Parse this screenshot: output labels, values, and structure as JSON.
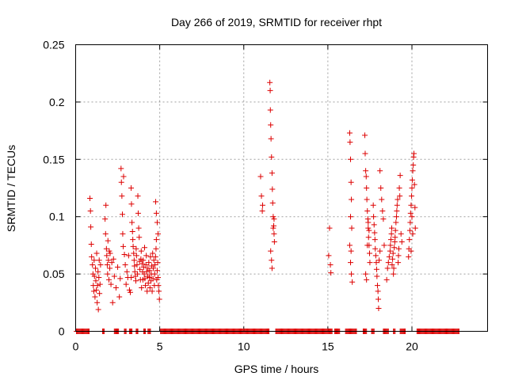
{
  "chart_data": {
    "type": "scatter",
    "title": "Day 266 of 2019, SRMTID for receiver rhpt",
    "xlabel": "GPS time / hours",
    "ylabel": "SRMTID / TECUs",
    "xlim": [
      0,
      24.5
    ],
    "ylim": [
      0,
      0.25
    ],
    "x_ticks": [
      0,
      5,
      10,
      15,
      20
    ],
    "y_ticks": [
      0,
      0.05,
      0.1,
      0.15,
      0.2,
      0.25
    ],
    "y_tick_labels": [
      "0",
      "0.05",
      "0.1",
      "0.15",
      "0.2",
      "0.25"
    ],
    "grid": true,
    "legend": "none",
    "marker": "+",
    "series": [
      {
        "color": "#dd0000",
        "points": [
          [
            0.85,
            0.116
          ],
          [
            0.88,
            0.105
          ],
          [
            0.9,
            0.091
          ],
          [
            0.93,
            0.076
          ],
          [
            0.95,
            0.065
          ],
          [
            1.0,
            0.058
          ],
          [
            1.03,
            0.05
          ],
          [
            1.05,
            0.04
          ],
          [
            1.08,
            0.035
          ],
          [
            1.1,
            0.062
          ],
          [
            1.12,
            0.048
          ],
          [
            1.15,
            0.03
          ],
          [
            1.18,
            0.055
          ],
          [
            1.2,
            0.044
          ],
          [
            1.23,
            0.036
          ],
          [
            1.25,
            0.068
          ],
          [
            1.28,
            0.025
          ],
          [
            1.3,
            0.04
          ],
          [
            1.33,
            0.052
          ],
          [
            1.35,
            0.019
          ],
          [
            1.38,
            0.047
          ],
          [
            1.4,
            0.062
          ],
          [
            1.42,
            0.033
          ],
          [
            1.45,
            0.041
          ],
          [
            1.48,
            0.058
          ],
          [
            1.75,
            0.098
          ],
          [
            1.78,
            0.085
          ],
          [
            1.8,
            0.11
          ],
          [
            1.83,
            0.072
          ],
          [
            1.85,
            0.066
          ],
          [
            1.88,
            0.058
          ],
          [
            1.9,
            0.05
          ],
          [
            1.92,
            0.079
          ],
          [
            1.95,
            0.062
          ],
          [
            1.98,
            0.045
          ],
          [
            2.0,
            0.07
          ],
          [
            2.03,
            0.055
          ],
          [
            2.05,
            0.068
          ],
          [
            2.1,
            0.041
          ],
          [
            2.15,
            0.06
          ],
          [
            2.2,
            0.025
          ],
          [
            2.25,
            0.063
          ],
          [
            2.3,
            0.048
          ],
          [
            2.4,
            0.038
          ],
          [
            2.5,
            0.056
          ],
          [
            2.6,
            0.03
          ],
          [
            2.65,
            0.046
          ],
          [
            2.7,
            0.142
          ],
          [
            2.72,
            0.13
          ],
          [
            2.75,
            0.118
          ],
          [
            2.78,
            0.102
          ],
          [
            2.8,
            0.085
          ],
          [
            2.83,
            0.074
          ],
          [
            2.85,
            0.135
          ],
          [
            2.9,
            0.067
          ],
          [
            2.95,
            0.058
          ],
          [
            3.0,
            0.041
          ],
          [
            3.05,
            0.052
          ],
          [
            3.1,
            0.047
          ],
          [
            3.15,
            0.066
          ],
          [
            3.2,
            0.036
          ],
          [
            3.25,
            0.034
          ],
          [
            3.3,
            0.047
          ],
          [
            3.3,
            0.125
          ],
          [
            3.32,
            0.111
          ],
          [
            3.35,
            0.095
          ],
          [
            3.38,
            0.087
          ],
          [
            3.4,
            0.08
          ],
          [
            3.42,
            0.074
          ],
          [
            3.45,
            0.068
          ],
          [
            3.48,
            0.062
          ],
          [
            3.5,
            0.057
          ],
          [
            3.52,
            0.052
          ],
          [
            3.55,
            0.048
          ],
          [
            3.58,
            0.044
          ],
          [
            3.6,
            0.072
          ],
          [
            3.62,
            0.066
          ],
          [
            3.65,
            0.058
          ],
          [
            3.68,
            0.05
          ],
          [
            3.7,
            0.118
          ],
          [
            3.72,
            0.103
          ],
          [
            3.75,
            0.09
          ],
          [
            3.78,
            0.082
          ],
          [
            3.8,
            0.061
          ],
          [
            3.82,
            0.054
          ],
          [
            3.85,
            0.045
          ],
          [
            3.88,
            0.063
          ],
          [
            3.9,
            0.07
          ],
          [
            3.92,
            0.038
          ],
          [
            3.95,
            0.059
          ],
          [
            3.98,
            0.052
          ],
          [
            4.0,
            0.045
          ],
          [
            4.02,
            0.062
          ],
          [
            4.05,
            0.056
          ],
          [
            4.08,
            0.05
          ],
          [
            4.1,
            0.073
          ],
          [
            4.12,
            0.046
          ],
          [
            4.15,
            0.04
          ],
          [
            4.18,
            0.058
          ],
          [
            4.2,
            0.066
          ],
          [
            4.22,
            0.052
          ],
          [
            4.25,
            0.035
          ],
          [
            4.28,
            0.048
          ],
          [
            4.3,
            0.055
          ],
          [
            4.32,
            0.042
          ],
          [
            4.35,
            0.06
          ],
          [
            4.38,
            0.047
          ],
          [
            4.4,
            0.053
          ],
          [
            4.42,
            0.038
          ],
          [
            4.45,
            0.065
          ],
          [
            4.48,
            0.044
          ],
          [
            4.5,
            0.05
          ],
          [
            4.52,
            0.057
          ],
          [
            4.55,
            0.035
          ],
          [
            4.58,
            0.068
          ],
          [
            4.6,
            0.046
          ],
          [
            4.62,
            0.055
          ],
          [
            4.65,
            0.062
          ],
          [
            4.68,
            0.04
          ],
          [
            4.7,
            0.05
          ],
          [
            4.72,
            0.058
          ],
          [
            4.75,
            0.065
          ],
          [
            4.78,
            0.072
          ],
          [
            4.8,
            0.08
          ],
          [
            4.82,
            0.045
          ],
          [
            4.85,
            0.053
          ],
          [
            4.88,
            0.06
          ],
          [
            4.9,
            0.047
          ],
          [
            4.92,
            0.04
          ],
          [
            4.95,
            0.035
          ],
          [
            4.98,
            0.028
          ],
          [
            4.76,
            0.113
          ],
          [
            4.8,
            0.103
          ],
          [
            4.85,
            0.095
          ],
          [
            4.9,
            0.085
          ],
          [
            11.0,
            0.135
          ],
          [
            11.05,
            0.118
          ],
          [
            11.1,
            0.105
          ],
          [
            11.12,
            0.11
          ],
          [
            11.55,
            0.217
          ],
          [
            11.57,
            0.21
          ],
          [
            11.58,
            0.193
          ],
          [
            11.6,
            0.18
          ],
          [
            11.62,
            0.168
          ],
          [
            11.65,
            0.152
          ],
          [
            11.68,
            0.138
          ],
          [
            11.7,
            0.124
          ],
          [
            11.72,
            0.112
          ],
          [
            11.75,
            0.1
          ],
          [
            11.78,
            0.092
          ],
          [
            11.8,
            0.085
          ],
          [
            11.82,
            0.078
          ],
          [
            11.6,
            0.07
          ],
          [
            11.65,
            0.062
          ],
          [
            11.68,
            0.055
          ],
          [
            11.75,
            0.09
          ],
          [
            11.8,
            0.098
          ],
          [
            15.1,
            0.09
          ],
          [
            15.05,
            0.066
          ],
          [
            15.15,
            0.058
          ],
          [
            15.18,
            0.051
          ],
          [
            16.3,
            0.173
          ],
          [
            16.32,
            0.165
          ],
          [
            16.35,
            0.15
          ],
          [
            16.38,
            0.13
          ],
          [
            16.4,
            0.115
          ],
          [
            16.35,
            0.1
          ],
          [
            16.42,
            0.09
          ],
          [
            16.3,
            0.075
          ],
          [
            16.35,
            0.06
          ],
          [
            16.4,
            0.05
          ],
          [
            16.45,
            0.043
          ],
          [
            16.38,
            0.07
          ],
          [
            17.2,
            0.171
          ],
          [
            17.22,
            0.155
          ],
          [
            17.25,
            0.14
          ],
          [
            17.28,
            0.135
          ],
          [
            17.3,
            0.125
          ],
          [
            17.32,
            0.115
          ],
          [
            17.35,
            0.105
          ],
          [
            17.38,
            0.098
          ],
          [
            17.4,
            0.09
          ],
          [
            17.42,
            0.082
          ],
          [
            17.45,
            0.075
          ],
          [
            17.48,
            0.068
          ],
          [
            17.5,
            0.06
          ],
          [
            17.25,
            0.05
          ],
          [
            17.3,
            0.045
          ],
          [
            17.35,
            0.075
          ],
          [
            17.4,
            0.095
          ],
          [
            17.45,
            0.088
          ],
          [
            17.7,
            0.11
          ],
          [
            17.72,
            0.1
          ],
          [
            17.75,
            0.093
          ],
          [
            17.78,
            0.086
          ],
          [
            17.8,
            0.08
          ],
          [
            17.82,
            0.072
          ],
          [
            17.85,
            0.066
          ],
          [
            17.88,
            0.06
          ],
          [
            17.9,
            0.054
          ],
          [
            17.92,
            0.048
          ],
          [
            17.95,
            0.04
          ],
          [
            17.98,
            0.035
          ],
          [
            18.0,
            0.028
          ],
          [
            18.02,
            0.02
          ],
          [
            18.05,
            0.062
          ],
          [
            18.1,
            0.07
          ],
          [
            18.15,
            0.125
          ],
          [
            18.2,
            0.115
          ],
          [
            18.1,
            0.14
          ],
          [
            18.25,
            0.105
          ],
          [
            18.3,
            0.098
          ],
          [
            18.35,
            0.075
          ],
          [
            18.5,
            0.045
          ],
          [
            18.55,
            0.055
          ],
          [
            18.6,
            0.06
          ],
          [
            18.65,
            0.065
          ],
          [
            18.7,
            0.07
          ],
          [
            18.72,
            0.075
          ],
          [
            18.75,
            0.08
          ],
          [
            18.78,
            0.085
          ],
          [
            18.8,
            0.09
          ],
          [
            18.82,
            0.058
          ],
          [
            18.85,
            0.063
          ],
          [
            18.88,
            0.068
          ],
          [
            18.9,
            0.05
          ],
          [
            18.92,
            0.055
          ],
          [
            18.95,
            0.073
          ],
          [
            18.98,
            0.078
          ],
          [
            19.0,
            0.082
          ],
          [
            19.02,
            0.088
          ],
          [
            19.05,
            0.095
          ],
          [
            19.08,
            0.1
          ],
          [
            19.1,
            0.105
          ],
          [
            19.12,
            0.11
          ],
          [
            19.15,
            0.115
          ],
          [
            19.18,
            0.06
          ],
          [
            19.2,
            0.066
          ],
          [
            19.22,
            0.072
          ],
          [
            19.25,
            0.125
          ],
          [
            19.28,
            0.118
          ],
          [
            19.3,
            0.136
          ],
          [
            19.35,
            0.085
          ],
          [
            19.4,
            0.078
          ],
          [
            19.8,
            0.065
          ],
          [
            19.82,
            0.072
          ],
          [
            19.85,
            0.08
          ],
          [
            19.88,
            0.088
          ],
          [
            19.9,
            0.095
          ],
          [
            19.92,
            0.103
          ],
          [
            19.95,
            0.11
          ],
          [
            19.98,
            0.118
          ],
          [
            20.0,
            0.125
          ],
          [
            20.02,
            0.132
          ],
          [
            20.05,
            0.14
          ],
          [
            20.08,
            0.145
          ],
          [
            20.1,
            0.152
          ],
          [
            20.12,
            0.155
          ],
          [
            20.15,
            0.128
          ],
          [
            20.18,
            0.108
          ],
          [
            20.2,
            0.09
          ],
          [
            19.95,
            0.07
          ],
          [
            20.0,
            0.1
          ],
          [
            20.05,
            0.085
          ]
        ],
        "zero_segments": [
          [
            0.05,
            0.8
          ],
          [
            1.6,
            1.7
          ],
          [
            2.3,
            2.55
          ],
          [
            2.9,
            3.0
          ],
          [
            3.2,
            3.35
          ],
          [
            3.6,
            3.7
          ],
          [
            4.05,
            4.15
          ],
          [
            4.3,
            4.45
          ],
          [
            5.05,
            11.5
          ],
          [
            11.9,
            15.25
          ],
          [
            15.4,
            15.7
          ],
          [
            16.05,
            16.7
          ],
          [
            17.1,
            17.3
          ],
          [
            17.6,
            17.75
          ],
          [
            18.3,
            18.6
          ],
          [
            18.9,
            19.0
          ],
          [
            19.3,
            19.6
          ],
          [
            20.3,
            22.8
          ]
        ]
      }
    ]
  }
}
